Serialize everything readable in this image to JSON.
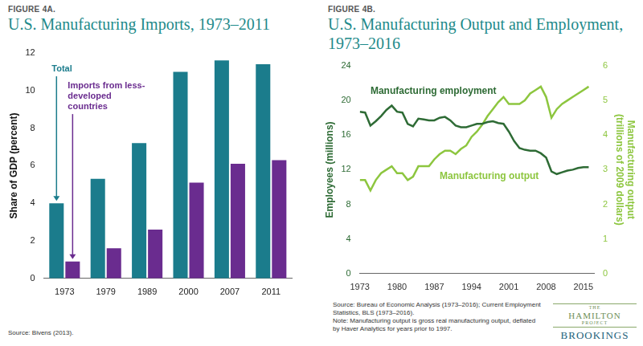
{
  "chart_data": [
    {
      "type": "bar",
      "label": "FIGURE 4A.",
      "title": "U.S. Manufacturing Imports, 1973–2011",
      "categories": [
        "1973",
        "1979",
        "1989",
        "2000",
        "2007",
        "2011"
      ],
      "series": [
        {
          "name": "Total",
          "color": "#1b7c8c",
          "values": [
            4.0,
            5.3,
            7.2,
            11.0,
            11.6,
            11.4
          ]
        },
        {
          "name": "Imports from less-developed countries",
          "color": "#6a2c8f",
          "values": [
            0.9,
            1.6,
            2.6,
            5.1,
            6.1,
            6.3
          ]
        }
      ],
      "ylabel": "Share of GDP (percent)",
      "ylim": [
        0,
        12
      ],
      "yticks": [
        0,
        2,
        4,
        6,
        8,
        10,
        12
      ],
      "grid": false,
      "annotations": [
        {
          "text": "Total",
          "x": "1973",
          "y": 11.4
        },
        {
          "text": "Imports from less-developed countries",
          "x": "1973",
          "y": 10.5
        }
      ],
      "source": "Source: Bivens (2013)."
    },
    {
      "type": "line",
      "label": "FIGURE 4B.",
      "title": "U.S. Manufacturing Output and Employment, 1973–2016",
      "x": [
        1973,
        1974,
        1975,
        1976,
        1977,
        1978,
        1979,
        1980,
        1981,
        1982,
        1983,
        1984,
        1985,
        1986,
        1987,
        1988,
        1989,
        1990,
        1991,
        1992,
        1993,
        1994,
        1995,
        1996,
        1997,
        1998,
        1999,
        2000,
        2001,
        2002,
        2003,
        2004,
        2005,
        2006,
        2007,
        2008,
        2009,
        2010,
        2011,
        2012,
        2013,
        2014,
        2015,
        2016
      ],
      "series": [
        {
          "name": "Manufacturing employment",
          "color": "#2e6b35",
          "axis": "y",
          "values": [
            18.7,
            18.6,
            17.1,
            17.6,
            18.2,
            18.9,
            19.4,
            18.7,
            18.6,
            17.3,
            17.0,
            17.9,
            17.8,
            17.7,
            17.7,
            18.0,
            18.1,
            17.7,
            17.1,
            16.9,
            16.9,
            17.1,
            17.3,
            17.3,
            17.5,
            17.6,
            17.4,
            17.3,
            16.4,
            15.3,
            14.5,
            14.3,
            14.2,
            14.2,
            13.9,
            13.4,
            11.8,
            11.5,
            11.7,
            11.9,
            12.0,
            12.2,
            12.3,
            12.3
          ]
        },
        {
          "name": "Manufacturing output",
          "color": "#8dc63f",
          "axis": "y2",
          "values": [
            2.7,
            2.7,
            2.4,
            2.7,
            2.9,
            3.0,
            3.1,
            2.9,
            2.9,
            2.7,
            2.8,
            3.1,
            3.1,
            3.1,
            3.3,
            3.45,
            3.55,
            3.55,
            3.45,
            3.6,
            3.7,
            3.95,
            4.1,
            4.3,
            4.55,
            4.75,
            4.95,
            5.1,
            4.9,
            4.9,
            4.9,
            5.0,
            5.2,
            5.3,
            5.4,
            5.1,
            4.5,
            4.75,
            4.9,
            5.0,
            5.1,
            5.2,
            5.3,
            5.4
          ]
        }
      ],
      "xlim": [
        1973,
        2017
      ],
      "xticks": [
        1973,
        1980,
        1987,
        1994,
        2001,
        2008,
        2015
      ],
      "ylabel": "Employees (millions)",
      "ylim": [
        0,
        24
      ],
      "yticks": [
        0,
        4,
        8,
        12,
        16,
        20,
        24
      ],
      "y2label": [
        "Manufacturing output",
        "(trillions of 2009 dollars)"
      ],
      "y2lim": [
        0,
        6
      ],
      "y2ticks": [
        0,
        1,
        2,
        3,
        4,
        5,
        6
      ],
      "grid": false,
      "annotations": [
        {
          "text": "Manufacturing employment",
          "x": 1975,
          "y": 21.6
        },
        {
          "text": "Manufacturing output",
          "x": 1988,
          "y": 11.8
        }
      ],
      "source": "Source: Bureau of Economic Analysis (1973–2016); Current Employment Statistics, BLS (1973–2016).",
      "note": "Note: Manufacturing output is gross real manufacturing output, deflated by Haver Analytics for years prior to 1997."
    }
  ],
  "logo": {
    "lines": [
      "THE",
      "HAMILTON",
      "PROJECT"
    ],
    "org": "BROOKINGS"
  }
}
